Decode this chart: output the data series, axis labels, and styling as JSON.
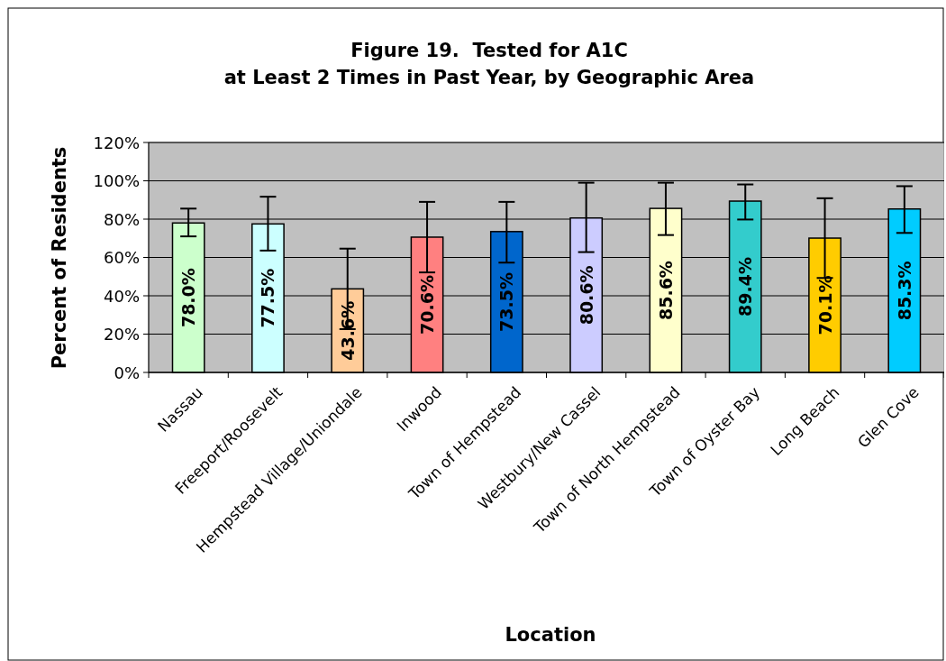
{
  "chart_data": {
    "type": "bar",
    "title": "Figure 19.  Tested for A1C\nat Least 2 Times in Past Year, by Geographic Area",
    "xlabel": "Location",
    "ylabel": "Percent of Residents",
    "categories": [
      "Nassau",
      "Freeport/Roosevelt",
      "Hempstead Village/Uniondale",
      "Inwood",
      "Town of Hempstead",
      "Westbury/New Cassel",
      "Town of North Hempstead",
      "Town of Oyster Bay",
      "Long Beach",
      "Glen Cove"
    ],
    "values": [
      78.0,
      77.5,
      43.6,
      70.6,
      73.5,
      80.6,
      85.6,
      89.4,
      70.1,
      85.3
    ],
    "colors": [
      "#ccffcc",
      "#ccffff",
      "#ffcc99",
      "#ff8080",
      "#0066cc",
      "#ccccff",
      "#ffffcc",
      "#33cccc",
      "#ffcc00",
      "#00ccff"
    ],
    "errors": [
      [
        71,
        85.5
      ],
      [
        63.6,
        91.7
      ],
      [
        22.6,
        64.6
      ],
      [
        52.2,
        89
      ],
      [
        57.3,
        89
      ],
      [
        62.8,
        99
      ],
      [
        71.7,
        99
      ],
      [
        79.8,
        98.1
      ],
      [
        49.3,
        90.9
      ],
      [
        72.8,
        97.2
      ]
    ],
    "value_labels": [
      "78.0%",
      "77.5%",
      "43.6%",
      "70.6%",
      "73.5%",
      "80.6%",
      "85.6%",
      "89.4%",
      "70.1%",
      "85.3%"
    ],
    "ylim": [
      0,
      120
    ],
    "yticks": [
      {
        "value": 0,
        "label": "0%"
      },
      {
        "value": 20,
        "label": "20%"
      },
      {
        "value": 40,
        "label": "40%"
      },
      {
        "value": 60,
        "label": "60%"
      },
      {
        "value": 80,
        "label": "80%"
      },
      {
        "value": 100,
        "label": "100%"
      },
      {
        "value": 120,
        "label": "120%"
      }
    ],
    "grid": "y"
  }
}
